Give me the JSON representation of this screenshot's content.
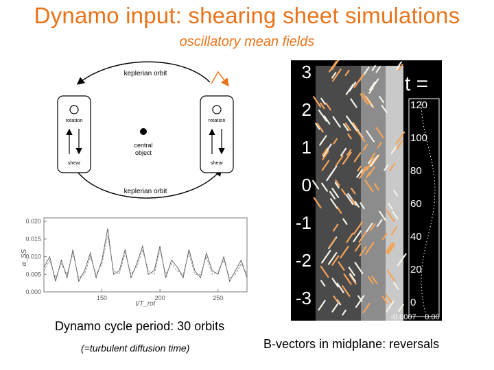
{
  "slide": {
    "title": "Dynamo input: shearing sheet simulations",
    "subtitle": "oscillatory mean fields",
    "caption_period": "Dynamo cycle period: 30 orbits",
    "caption_diffusion": "(=turbulent diffusion time)",
    "caption_vectors": "B-vectors in midplane: reversals"
  },
  "diagram": {
    "top_orbit_label": "keplerian orbit",
    "bottom_orbit_label": "keplerian orbit",
    "left_box": {
      "rotation_label": "rotation",
      "shear_label": "shear"
    },
    "right_box": {
      "rotation_label": "rotation",
      "shear_label": "shear"
    },
    "center_label_line1": "central",
    "center_label_line2": "object"
  },
  "plot": {
    "ylabel": "α_SS",
    "xlabel": "t/T_rot",
    "yticks": [
      "0.020",
      "0.015",
      "0.010",
      "0.005",
      "0.000"
    ],
    "xticks": [
      "150",
      "200",
      "250"
    ]
  },
  "vector_panel": {
    "y_ticks": [
      "3",
      "2",
      "1",
      "0",
      "-1",
      "-2",
      "-3"
    ],
    "t_label": "t =",
    "t_ticks": [
      "120",
      "100",
      "80",
      "60",
      "40",
      "20",
      "0"
    ],
    "bottom_tick": "-0.0007",
    "bottom_tick_right": "0.00"
  },
  "chart_data": {
    "type": "line",
    "title": "",
    "xlabel": "t/T_rot",
    "ylabel": "α_SS",
    "xlim": [
      100,
      275
    ],
    "ylim": [
      0,
      0.021
    ],
    "x_ticks": [
      150,
      200,
      250
    ],
    "y_ticks": [
      0.0,
      0.005,
      0.01,
      0.015,
      0.02
    ],
    "series": [
      {
        "x": [
          100,
          105,
          110,
          115,
          120,
          125,
          130,
          135,
          140,
          145,
          150,
          155,
          160,
          165,
          170,
          175,
          180,
          185,
          190,
          195,
          200,
          205,
          210,
          215,
          220,
          225,
          230,
          235,
          240,
          245,
          250,
          255,
          260,
          265,
          270,
          275
        ],
        "values": [
          0.007,
          0.01,
          0.003,
          0.009,
          0.004,
          0.012,
          0.003,
          0.006,
          0.011,
          0.004,
          0.009,
          0.018,
          0.005,
          0.006,
          0.012,
          0.004,
          0.008,
          0.013,
          0.005,
          0.006,
          0.013,
          0.004,
          0.009,
          0.007,
          0.004,
          0.012,
          0.006,
          0.004,
          0.011,
          0.006,
          0.005,
          0.01,
          0.003,
          0.006,
          0.009,
          0.004
        ]
      },
      {
        "x": [
          100,
          105,
          110,
          115,
          120,
          125,
          130,
          135,
          140,
          145,
          150,
          155,
          160,
          165,
          170,
          175,
          180,
          185,
          190,
          195,
          200,
          205,
          210,
          215,
          220,
          225,
          230,
          235,
          240,
          245,
          250,
          255,
          260,
          265,
          270,
          275
        ],
        "values": [
          0.006,
          0.009,
          0.004,
          0.008,
          0.005,
          0.011,
          0.004,
          0.005,
          0.01,
          0.005,
          0.008,
          0.016,
          0.006,
          0.005,
          0.011,
          0.005,
          0.007,
          0.012,
          0.006,
          0.005,
          0.012,
          0.005,
          0.008,
          0.006,
          0.005,
          0.011,
          0.005,
          0.005,
          0.01,
          0.005,
          0.006,
          0.009,
          0.004,
          0.005,
          0.008,
          0.005
        ]
      }
    ]
  },
  "colors": {
    "title": "#e8731a",
    "plot_line": "#555555",
    "vector_accent": "#f4a45a",
    "panel_bg": "#000000"
  }
}
